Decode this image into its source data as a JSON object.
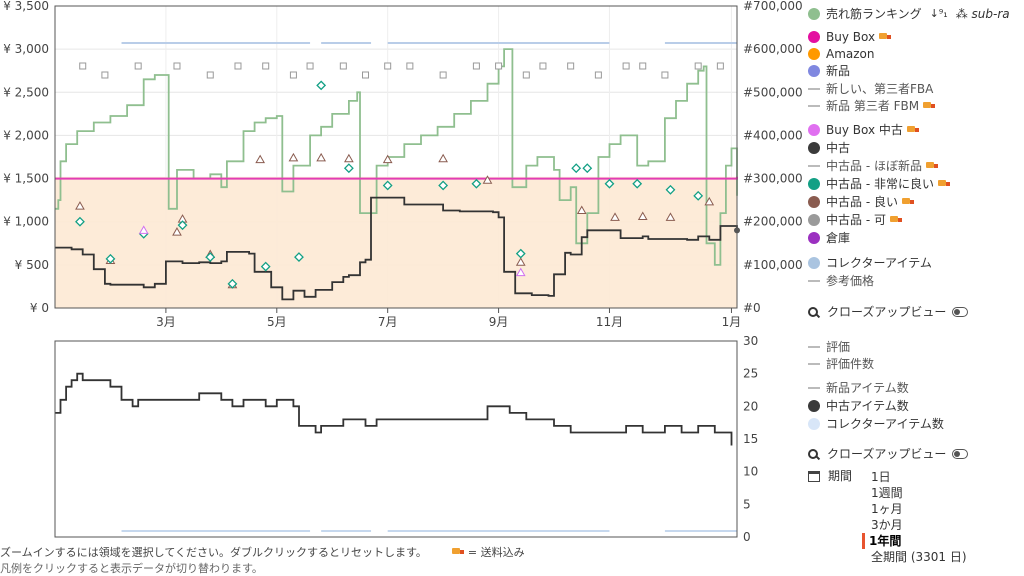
{
  "chart_data": [
    {
      "type": "line",
      "title": "",
      "x_ticks": [
        "3月",
        "5月",
        "7月",
        "9月",
        "11月",
        "1月"
      ],
      "y_left_ticks": [
        "¥ 0",
        "¥ 500",
        "¥ 1,000",
        "¥ 1,500",
        "¥ 2,000",
        "¥ 2,500",
        "¥ 3,000",
        "¥ 3,500"
      ],
      "y_right_ticks": [
        "#0",
        "#100,000",
        "#200,000",
        "#300,000",
        "#400,000",
        "#500,000",
        "#600,000",
        "#700,000"
      ],
      "ylim_left": [
        0,
        3500
      ],
      "ylim_right": [
        0,
        700000
      ],
      "buy_box_price": 1520,
      "series": [
        {
          "name": "売れ筋ランキング",
          "color": "#8fbf8f",
          "axis": "right",
          "values": [
            [
              0,
              230000
            ],
            [
              0.06,
              250000
            ],
            [
              0.1,
              340000
            ],
            [
              0.2,
              380000
            ],
            [
              0.4,
              410000
            ],
            [
              0.7,
              430000
            ],
            [
              1.0,
              445000
            ],
            [
              1.3,
              470000
            ],
            [
              1.6,
              530000
            ],
            [
              1.8,
              540000
            ],
            [
              2.0,
              540000
            ],
            [
              2.05,
              230000
            ],
            [
              2.2,
              320000
            ],
            [
              2.5,
              300000
            ],
            [
              2.8,
              310000
            ],
            [
              3.0,
              280000
            ],
            [
              3.1,
              340000
            ],
            [
              3.4,
              410000
            ],
            [
              3.6,
              430000
            ],
            [
              3.8,
              440000
            ],
            [
              4.0,
              445000
            ],
            [
              4.1,
              270000
            ],
            [
              4.3,
              330000
            ],
            [
              4.6,
              400000
            ],
            [
              4.8,
              420000
            ],
            [
              5.0,
              450000
            ],
            [
              5.3,
              480000
            ],
            [
              5.45,
              500000
            ],
            [
              5.5,
              220000
            ],
            [
              5.8,
              330000
            ],
            [
              6.0,
              350000
            ],
            [
              6.3,
              380000
            ],
            [
              6.6,
              400000
            ],
            [
              6.9,
              420000
            ],
            [
              7.2,
              450000
            ],
            [
              7.5,
              480000
            ],
            [
              7.8,
              520000
            ],
            [
              8.0,
              560000
            ],
            [
              8.1,
              600000
            ],
            [
              8.2,
              600000
            ],
            [
              8.25,
              280000
            ],
            [
              8.5,
              330000
            ],
            [
              8.7,
              350000
            ],
            [
              9.0,
              320000
            ],
            [
              9.1,
              250000
            ],
            [
              9.3,
              280000
            ],
            [
              9.4,
              150000
            ],
            [
              9.6,
              220000
            ],
            [
              9.8,
              350000
            ],
            [
              10.0,
              380000
            ],
            [
              10.2,
              400000
            ],
            [
              10.5,
              330000
            ],
            [
              10.7,
              340000
            ],
            [
              11.0,
              440000
            ],
            [
              11.2,
              480000
            ],
            [
              11.4,
              520000
            ],
            [
              11.6,
              550000
            ],
            [
              11.7,
              560000
            ],
            [
              11.75,
              150000
            ],
            [
              11.9,
              100000
            ],
            [
              12.0,
              220000
            ],
            [
              12.1,
              330000
            ],
            [
              12.2,
              370000
            ],
            [
              12.3,
              260000
            ]
          ]
        },
        {
          "name": "Buy Box",
          "color": "#e23cb5",
          "axis": "left",
          "values": [
            [
              0,
              1500
            ],
            [
              12.3,
              1520
            ]
          ]
        },
        {
          "name": "中古",
          "color": "#333333",
          "axis": "left",
          "values": [
            [
              0,
              700
            ],
            [
              0.3,
              680
            ],
            [
              0.5,
              620
            ],
            [
              0.7,
              450
            ],
            [
              0.9,
              280
            ],
            [
              1.0,
              270
            ],
            [
              1.6,
              240
            ],
            [
              1.8,
              280
            ],
            [
              2.0,
              540
            ],
            [
              2.3,
              520
            ],
            [
              2.6,
              530
            ],
            [
              2.8,
              520
            ],
            [
              3.0,
              540
            ],
            [
              3.1,
              650
            ],
            [
              3.5,
              630
            ],
            [
              3.6,
              420
            ],
            [
              3.9,
              240
            ],
            [
              4.1,
              100
            ],
            [
              4.3,
              200
            ],
            [
              4.5,
              130
            ],
            [
              4.7,
              210
            ],
            [
              5.0,
              300
            ],
            [
              5.2,
              360
            ],
            [
              5.3,
              380
            ],
            [
              5.5,
              530
            ],
            [
              5.6,
              560
            ],
            [
              5.7,
              1280
            ],
            [
              6.2,
              1280
            ],
            [
              6.3,
              1200
            ],
            [
              6.8,
              1200
            ],
            [
              7.0,
              1130
            ],
            [
              7.3,
              1120
            ],
            [
              7.6,
              1120
            ],
            [
              7.9,
              1110
            ],
            [
              8.0,
              1050
            ],
            [
              8.1,
              420
            ],
            [
              8.3,
              170
            ],
            [
              8.6,
              150
            ],
            [
              8.9,
              140
            ],
            [
              9.0,
              390
            ],
            [
              9.2,
              640
            ],
            [
              9.3,
              620
            ],
            [
              9.5,
              820
            ],
            [
              9.6,
              900
            ],
            [
              10.0,
              900
            ],
            [
              10.2,
              810
            ],
            [
              10.6,
              830
            ],
            [
              10.7,
              800
            ],
            [
              11.2,
              800
            ],
            [
              11.4,
              790
            ],
            [
              11.6,
              830
            ],
            [
              11.8,
              790
            ],
            [
              12.0,
              950
            ],
            [
              12.3,
              900
            ]
          ]
        }
      ]
    },
    {
      "type": "line",
      "title": "",
      "y_right_ticks": [
        "0",
        "5",
        "10",
        "15",
        "20",
        "25",
        "30"
      ],
      "ylim": [
        0,
        30
      ],
      "series": [
        {
          "name": "中古アイテム数",
          "color": "#333333",
          "values": [
            [
              0,
              19
            ],
            [
              0.1,
              21
            ],
            [
              0.2,
              23
            ],
            [
              0.3,
              24
            ],
            [
              0.4,
              25
            ],
            [
              0.5,
              24
            ],
            [
              0.8,
              24
            ],
            [
              1.0,
              23
            ],
            [
              1.2,
              21
            ],
            [
              1.4,
              20
            ],
            [
              1.5,
              21
            ],
            [
              2.0,
              21
            ],
            [
              2.2,
              21
            ],
            [
              2.6,
              22
            ],
            [
              3.0,
              21
            ],
            [
              3.2,
              20
            ],
            [
              3.4,
              21
            ],
            [
              3.6,
              21
            ],
            [
              3.8,
              20
            ],
            [
              4.0,
              21
            ],
            [
              4.3,
              20
            ],
            [
              4.4,
              17
            ],
            [
              4.6,
              17
            ],
            [
              4.7,
              16
            ],
            [
              4.8,
              17
            ],
            [
              5.2,
              18
            ],
            [
              5.4,
              18
            ],
            [
              5.6,
              17
            ],
            [
              5.8,
              18
            ],
            [
              6.2,
              18
            ],
            [
              6.8,
              18
            ],
            [
              7.3,
              18
            ],
            [
              7.8,
              20
            ],
            [
              8.0,
              20
            ],
            [
              8.2,
              19
            ],
            [
              8.5,
              18
            ],
            [
              8.8,
              18
            ],
            [
              9.0,
              17
            ],
            [
              9.3,
              16
            ],
            [
              9.6,
              16
            ],
            [
              10.0,
              16
            ],
            [
              10.3,
              17
            ],
            [
              10.6,
              16
            ],
            [
              11.0,
              17
            ],
            [
              11.3,
              16
            ],
            [
              11.6,
              17
            ],
            [
              11.9,
              16
            ],
            [
              12.1,
              16
            ],
            [
              12.2,
              14
            ]
          ]
        }
      ]
    }
  ],
  "legend": {
    "items": [
      {
        "label": "売れ筋ランキング",
        "kind": "dot",
        "color": "#8fbf8f",
        "top": 6,
        "extra": "sub-ra",
        "sort_icon": "sort-icon"
      },
      {
        "label": "Buy Box",
        "kind": "dot",
        "color": "#e40fa0",
        "top": 29,
        "truck": true
      },
      {
        "label": "Amazon",
        "kind": "dot",
        "color": "#ff9900",
        "top": 46
      },
      {
        "label": "新品",
        "kind": "dot",
        "color": "#8088e0",
        "top": 63
      },
      {
        "label": "新しい、第三者FBA",
        "kind": "dash",
        "color": "#bbbbbb",
        "top": 81
      },
      {
        "label": "新品 第三者 FBM",
        "kind": "dash",
        "color": "#bbbbbb",
        "top": 98,
        "truck": true
      },
      {
        "label": "Buy Box 中古",
        "kind": "dot",
        "color": "#e070f0",
        "top": 122,
        "truck": true
      },
      {
        "label": "中古",
        "kind": "dot",
        "color": "#3a3a3a",
        "top": 140
      },
      {
        "label": "中古品 - ほぼ新品",
        "kind": "dash",
        "color": "#bbbbbb",
        "top": 158,
        "truck": true
      },
      {
        "label": "中古品 - 非常に良い",
        "kind": "dot",
        "color": "#13a085",
        "top": 176,
        "truck": true
      },
      {
        "label": "中古品 - 良い",
        "kind": "dot",
        "color": "#8a5c50",
        "top": 194,
        "truck": true
      },
      {
        "label": "中古品 - 可",
        "kind": "dot",
        "color": "#9a9a9a",
        "top": 212,
        "truck": true
      },
      {
        "label": "倉庫",
        "kind": "dot",
        "color": "#9b30c0",
        "top": 230
      },
      {
        "label": "コレクターアイテム",
        "kind": "dot",
        "color": "#aac4e0",
        "top": 255
      },
      {
        "label": "参考価格",
        "kind": "dash",
        "color": "#bbbbbb",
        "top": 273
      },
      {
        "label": "評価",
        "kind": "dash",
        "color": "#bbbbbb",
        "top": 339
      },
      {
        "label": "評価件数",
        "kind": "dash",
        "color": "#bbbbbb",
        "top": 356
      },
      {
        "label": "新品アイテム数",
        "kind": "dash",
        "color": "#bbbbbb",
        "top": 380
      },
      {
        "label": "中古アイテム数",
        "kind": "dot",
        "color": "#3a3a3a",
        "top": 398
      },
      {
        "label": "コレクターアイテム数",
        "kind": "dot",
        "color": "#d8e6f8",
        "top": 416
      }
    ],
    "closeup_label": "クローズアップビュー",
    "period_label": "期間",
    "ranges": [
      "1日",
      "1週間",
      "1ヶ月",
      "3か月",
      "1年間",
      "全期間 (3301 日)"
    ],
    "active_range": "1年間"
  },
  "footer": {
    "hint": "ズームインするには領域を選択してください。ダブルクリックするとリセットします。",
    "truck_note": "= 送料込み",
    "hint2": "凡例をクリックすると表示データが切り替わります。"
  }
}
